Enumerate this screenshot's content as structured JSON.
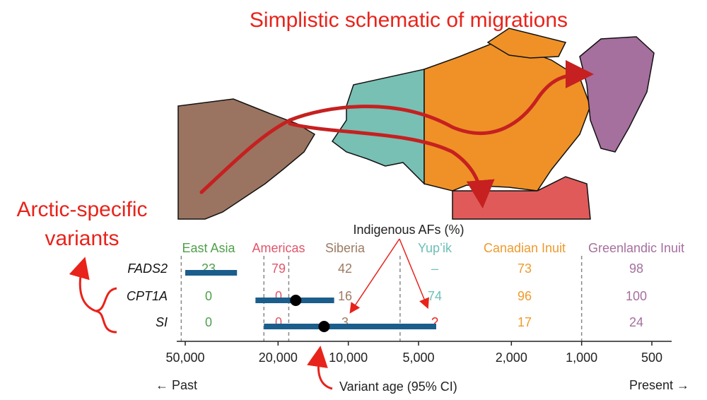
{
  "title": "Simplistic schematic of migrations",
  "annotation_lines": [
    "Arctic-specific",
    "variants"
  ],
  "chart_data": {
    "type": "interval",
    "table_title": "Indigenous AFs (%)",
    "xlabel": "Variant age (95% CI)",
    "left_label": "← Past",
    "right_label": "Present →",
    "xscale": "log",
    "xlim": [
      50000,
      500
    ],
    "xticks": [
      {
        "value": 50000,
        "label": "50,000"
      },
      {
        "value": 20000,
        "label": "20,000"
      },
      {
        "value": 10000,
        "label": "10,000"
      },
      {
        "value": 5000,
        "label": "5,000"
      },
      {
        "value": 2000,
        "label": "2,000"
      },
      {
        "value": 1000,
        "label": "1,000"
      },
      500
    ],
    "dividers": [
      52000,
      23000,
      18000,
      6000,
      1000
    ],
    "bar_color": "#1b5e8c",
    "populations": [
      {
        "name": "East Asia",
        "color": "#4fa04a"
      },
      {
        "name": "Americas",
        "color": "#e0566a"
      },
      {
        "name": "Siberia",
        "color": "#9c7b63"
      },
      {
        "name": "Yup’ik",
        "color": "#6cc0b8"
      },
      {
        "name": "Canadian Inuit",
        "color": "#ef9a2c"
      },
      {
        "name": "Greenlandic Inuit",
        "color": "#a56f9e"
      }
    ],
    "variants": [
      {
        "name": "FADS2",
        "af": [
          23,
          79,
          42,
          "–",
          73,
          98
        ],
        "ci": [
          50000,
          30000
        ],
        "estimate": null
      },
      {
        "name": "CPT1A",
        "af": [
          0,
          0,
          16,
          74,
          96,
          100
        ],
        "ci": [
          25000,
          11500
        ],
        "estimate": 16800
      },
      {
        "name": "SI",
        "af": [
          0,
          0,
          3,
          "?",
          17,
          24
        ],
        "ci": [
          23000,
          4200
        ],
        "estimate": 12700
      }
    ]
  }
}
